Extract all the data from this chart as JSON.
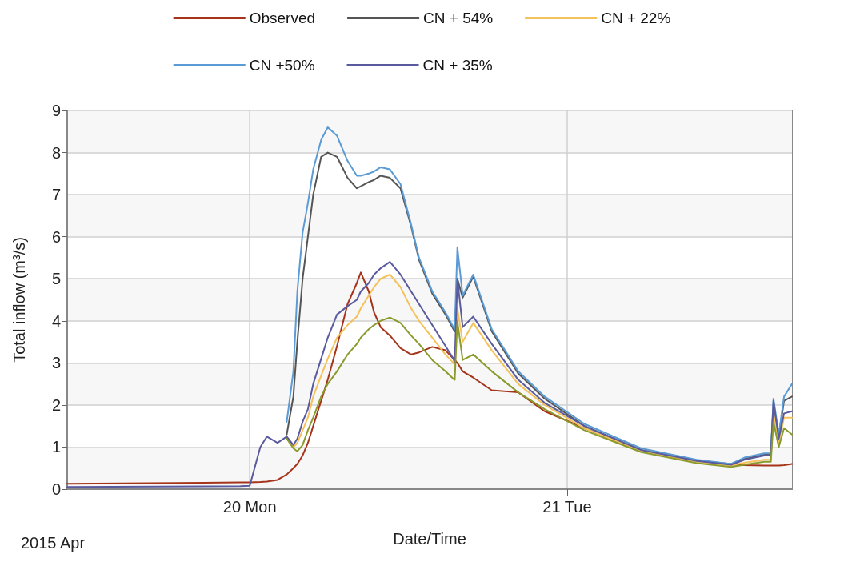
{
  "chart_data": {
    "type": "line",
    "xlabel": "Date/Time",
    "ylabel": "Total inflow (m³/s)",
    "annotations": [
      "2015 Apr"
    ],
    "x": [
      "2015-04-19T10:12",
      "2015-04-19T23:18",
      "2015-04-20T00:00",
      "2015-04-20T00:48",
      "2015-04-20T01:18",
      "2015-04-20T02:06",
      "2015-04-20T02:48",
      "2015-04-20T03:18",
      "2015-04-20T03:36",
      "2015-04-20T04:00",
      "2015-04-20T04:24",
      "2015-04-20T04:48",
      "2015-04-20T05:24",
      "2015-04-20T05:54",
      "2015-04-20T06:36",
      "2015-04-20T07:24",
      "2015-04-20T08:06",
      "2015-04-20T08:24",
      "2015-04-20T09:00",
      "2015-04-20T09:24",
      "2015-04-20T09:54",
      "2015-04-20T10:36",
      "2015-04-20T11:24",
      "2015-04-20T12:12",
      "2015-04-20T12:48",
      "2015-04-20T13:48",
      "2015-04-20T14:48",
      "2015-04-20T15:24",
      "2015-04-20T15:30",
      "2015-04-20T15:42",
      "2015-04-20T16:06",
      "2015-04-20T16:54",
      "2015-04-20T18:18",
      "2015-04-20T20:18",
      "2015-04-20T22:18",
      "2015-04-21T01:18",
      "2015-04-21T05:36",
      "2015-04-21T09:48",
      "2015-04-21T12:24",
      "2015-04-21T13:24",
      "2015-04-21T14:54",
      "2015-04-21T15:24",
      "2015-04-21T15:36",
      "2015-04-21T16:00",
      "2015-04-21T16:24",
      "2015-04-21T17:00"
    ],
    "xlim": [
      "2015-04-19T10:12",
      "2015-04-21T17:00"
    ],
    "xticks": [
      {
        "value": "2015-04-20",
        "label": "20 Mon"
      },
      {
        "value": "2015-04-21",
        "label": "21 Tue"
      }
    ],
    "ylim": [
      0,
      9
    ],
    "yticks": [
      0,
      1,
      2,
      3,
      4,
      5,
      6,
      7,
      8,
      9
    ],
    "grid": true,
    "legend": "top",
    "marker": "none",
    "line_style": "solid",
    "series": [
      {
        "name": "Observed",
        "color": "#a5341a",
        "values": [
          0.13,
          0.16,
          0.16,
          0.17,
          0.18,
          0.22,
          0.35,
          0.5,
          0.6,
          0.8,
          1.1,
          1.5,
          2.1,
          2.6,
          3.4,
          4.4,
          4.9,
          5.15,
          4.7,
          4.2,
          3.85,
          3.65,
          3.35,
          3.2,
          3.25,
          3.38,
          3.3,
          3.1,
          3.07,
          3.0,
          2.8,
          2.65,
          2.35,
          2.3,
          1.85,
          1.45,
          0.9,
          0.68,
          0.58,
          0.57,
          0.56,
          0.56,
          0.56,
          0.56,
          0.57,
          0.6
        ]
      },
      {
        "name": "CN + 54%",
        "color": "#555555",
        "values": [
          null,
          null,
          null,
          null,
          null,
          null,
          1.3,
          2.2,
          3.5,
          5.0,
          6.0,
          7.0,
          7.9,
          8.0,
          7.9,
          7.4,
          7.15,
          7.2,
          7.3,
          7.35,
          7.45,
          7.4,
          7.15,
          6.25,
          5.45,
          4.65,
          4.15,
          3.8,
          3.75,
          5.0,
          4.55,
          5.05,
          3.75,
          2.75,
          2.15,
          1.5,
          0.93,
          0.68,
          0.6,
          0.72,
          0.82,
          0.82,
          2.0,
          1.25,
          2.1,
          2.2
        ]
      },
      {
        "name": "CN + 22%",
        "color": "#f5c15a",
        "values": [
          null,
          null,
          null,
          null,
          null,
          null,
          1.25,
          1.0,
          1.1,
          1.4,
          1.7,
          2.2,
          2.7,
          3.1,
          3.6,
          3.9,
          4.1,
          4.3,
          4.6,
          4.8,
          5.0,
          5.1,
          4.8,
          4.3,
          4.0,
          3.6,
          3.2,
          3.0,
          2.95,
          4.3,
          3.5,
          3.95,
          3.3,
          2.5,
          2.0,
          1.45,
          0.9,
          0.65,
          0.56,
          0.63,
          0.7,
          0.7,
          1.8,
          1.1,
          1.7,
          1.7
        ]
      },
      {
        "name": "CN +50%",
        "color": "#5b9bd5",
        "values": [
          null,
          null,
          null,
          null,
          null,
          null,
          1.6,
          2.8,
          4.7,
          6.1,
          6.8,
          7.6,
          8.3,
          8.6,
          8.4,
          7.8,
          7.45,
          7.45,
          7.5,
          7.55,
          7.65,
          7.6,
          7.25,
          6.3,
          5.5,
          4.7,
          4.2,
          3.85,
          3.8,
          5.75,
          4.6,
          5.1,
          3.8,
          2.8,
          2.2,
          1.55,
          0.97,
          0.7,
          0.6,
          0.75,
          0.85,
          0.85,
          2.15,
          1.3,
          2.2,
          2.5
        ]
      },
      {
        "name": "CN + 35%",
        "color": "#5a5a9e",
        "values": [
          0.05,
          0.07,
          0.08,
          1.0,
          1.25,
          1.1,
          1.25,
          1.05,
          1.2,
          1.6,
          1.9,
          2.5,
          3.1,
          3.6,
          4.15,
          4.35,
          4.5,
          4.7,
          4.9,
          5.1,
          5.25,
          5.4,
          5.1,
          4.7,
          4.4,
          3.9,
          3.4,
          3.1,
          3.0,
          5.0,
          3.85,
          4.1,
          3.45,
          2.6,
          2.05,
          1.5,
          0.93,
          0.67,
          0.58,
          0.7,
          0.8,
          0.8,
          2.1,
          1.2,
          1.8,
          1.85
        ]
      },
      {
        "color": "#8a9a2c",
        "values": [
          null,
          null,
          null,
          null,
          null,
          null,
          1.2,
          0.97,
          0.9,
          1.05,
          1.4,
          1.7,
          2.2,
          2.5,
          2.8,
          3.2,
          3.45,
          3.6,
          3.8,
          3.9,
          4.0,
          4.08,
          3.95,
          3.65,
          3.45,
          3.07,
          2.8,
          2.62,
          2.6,
          4.0,
          3.07,
          3.2,
          2.8,
          2.3,
          1.9,
          1.4,
          0.88,
          0.62,
          0.53,
          0.58,
          0.65,
          0.65,
          1.6,
          1.0,
          1.45,
          1.3
        ]
      }
    ]
  }
}
